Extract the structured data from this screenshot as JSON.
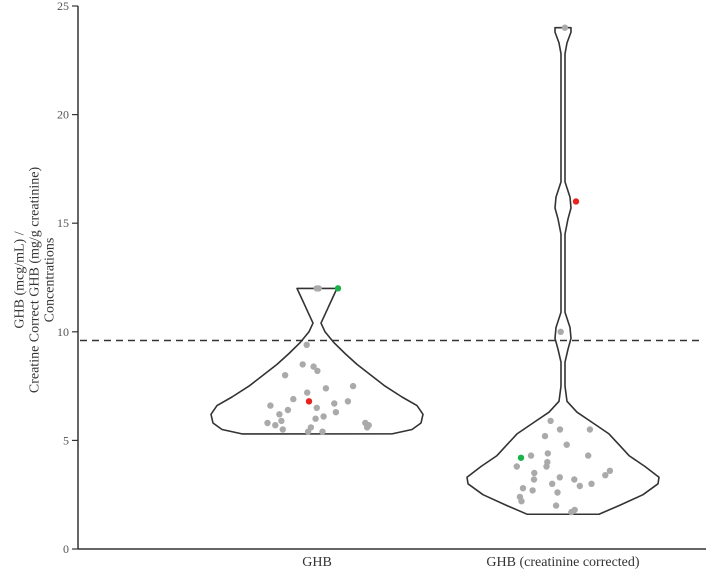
{
  "chart_data": {
    "type": "violin",
    "title": "",
    "xlabel": "",
    "ylabel_lines": [
      "GHB (mcg/mL) /",
      "Creatine Correct GHB (mg/g creatinine)",
      "Concentrations"
    ],
    "ylabel": "GHB (mcg/mL) / Creatine Correct GHB (mg/g creatinine) Concentrations",
    "ylim": [
      0,
      25
    ],
    "yticks": [
      0,
      5,
      10,
      15,
      20,
      25
    ],
    "grid": false,
    "reference_line": {
      "value": 9.6,
      "style": "dashed",
      "color": "#333333"
    },
    "categories": [
      "GHB",
      "GHB (creatinine corrected)"
    ],
    "colors": {
      "point": "#aaaaaa",
      "highlight_red": "#e8231f",
      "highlight_green": "#19b34a",
      "outline": "#333333"
    },
    "series": [
      {
        "name": "GHB",
        "min": 5.3,
        "max": 12.0,
        "points": [
          12.0,
          12.0,
          9.4,
          8.5,
          8.4,
          8.2,
          8.0,
          7.5,
          7.4,
          7.2,
          6.9,
          6.8,
          6.7,
          6.6,
          6.5,
          6.4,
          6.3,
          6.2,
          6.1,
          6.0,
          5.9,
          5.8,
          5.8,
          5.7,
          5.7,
          5.6,
          5.6,
          5.5,
          5.4,
          5.4
        ],
        "highlight_red": 6.8,
        "highlight_green": 12.0
      },
      {
        "name": "GHB (creatinine corrected)",
        "min": 1.6,
        "max": 24.0,
        "points": [
          24.0,
          10.0,
          5.9,
          5.5,
          5.5,
          5.2,
          4.8,
          4.4,
          4.3,
          4.3,
          4.0,
          3.8,
          3.8,
          3.6,
          3.5,
          3.4,
          3.3,
          3.2,
          3.2,
          3.0,
          3.0,
          2.9,
          2.8,
          2.7,
          2.6,
          2.4,
          2.2,
          2.0,
          1.8,
          1.7
        ],
        "highlight_red": 16.0,
        "highlight_green": 4.2
      }
    ]
  }
}
